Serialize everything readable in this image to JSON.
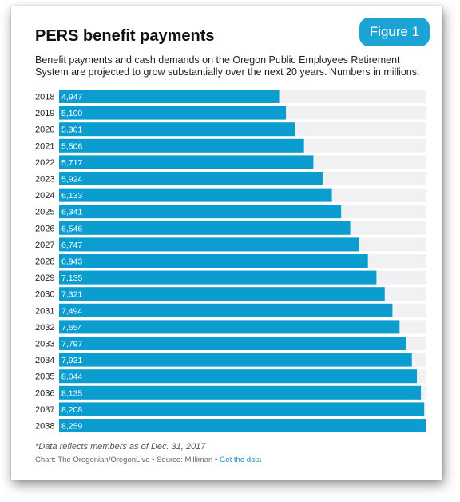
{
  "badge": "Figure 1",
  "title": "PERS benefit payments",
  "subtitle": "Benefit payments and cash demands on the Oregon Public Employees Retirement System are projected to grow substantially over the next 20 years. Numbers in millions.",
  "note": "*Data reflects members as of Dec. 31, 2017",
  "credit": {
    "text": "Chart: The Oregonian/OregonLive • Source: Milliman • ",
    "link": "Get the data"
  },
  "colors": {
    "bar": "#0b9dd0",
    "track": "#f1f0f2",
    "badge": "#1aa3d4"
  },
  "chart_data": {
    "type": "bar",
    "orientation": "horizontal",
    "categories": [
      "2018",
      "2019",
      "2020",
      "2021",
      "2022",
      "2023",
      "2024",
      "2025",
      "2026",
      "2027",
      "2028",
      "2029",
      "2030",
      "2031",
      "2032",
      "2033",
      "2034",
      "2035",
      "2036",
      "2037",
      "2038"
    ],
    "values": [
      4947,
      5100,
      5301,
      5506,
      5717,
      5924,
      6133,
      6341,
      6546,
      6747,
      6943,
      7135,
      7321,
      7494,
      7654,
      7797,
      7931,
      8044,
      8135,
      8208,
      8259
    ],
    "value_labels": [
      "4,947",
      "5,100",
      "5,301",
      "5,506",
      "5,717",
      "5,924",
      "6,133",
      "6,341",
      "6,546",
      "6,747",
      "6,943",
      "7,135",
      "7,321",
      "7,494",
      "7,654",
      "7,797",
      "7,931",
      "8,044",
      "8,135",
      "8,208",
      "8,259"
    ],
    "xlim": [
      0,
      8259
    ]
  }
}
